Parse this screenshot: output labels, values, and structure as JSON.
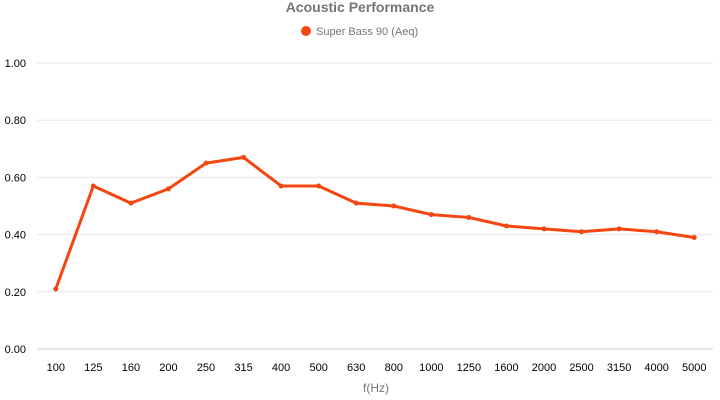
{
  "chart_data": {
    "type": "line",
    "title": "Acoustic Performance",
    "xlabel": "f(Hz)",
    "ylabel": "",
    "categories": [
      "100",
      "125",
      "160",
      "200",
      "250",
      "315",
      "400",
      "500",
      "630",
      "800",
      "1000",
      "1250",
      "1600",
      "2000",
      "2500",
      "3150",
      "4000",
      "5000"
    ],
    "series": [
      {
        "name": "Super Bass 90 (Aeq)",
        "color": "#f44611",
        "values": [
          0.21,
          0.57,
          0.51,
          0.56,
          0.65,
          0.67,
          0.57,
          0.57,
          0.51,
          0.5,
          0.47,
          0.46,
          0.43,
          0.42,
          0.41,
          0.42,
          0.41,
          0.39
        ]
      }
    ],
    "ylim": [
      0,
      1
    ],
    "yticks": [
      "0.00",
      "0.20",
      "0.40",
      "0.60",
      "0.80",
      "1.00"
    ],
    "grid": true,
    "legend": "top"
  }
}
